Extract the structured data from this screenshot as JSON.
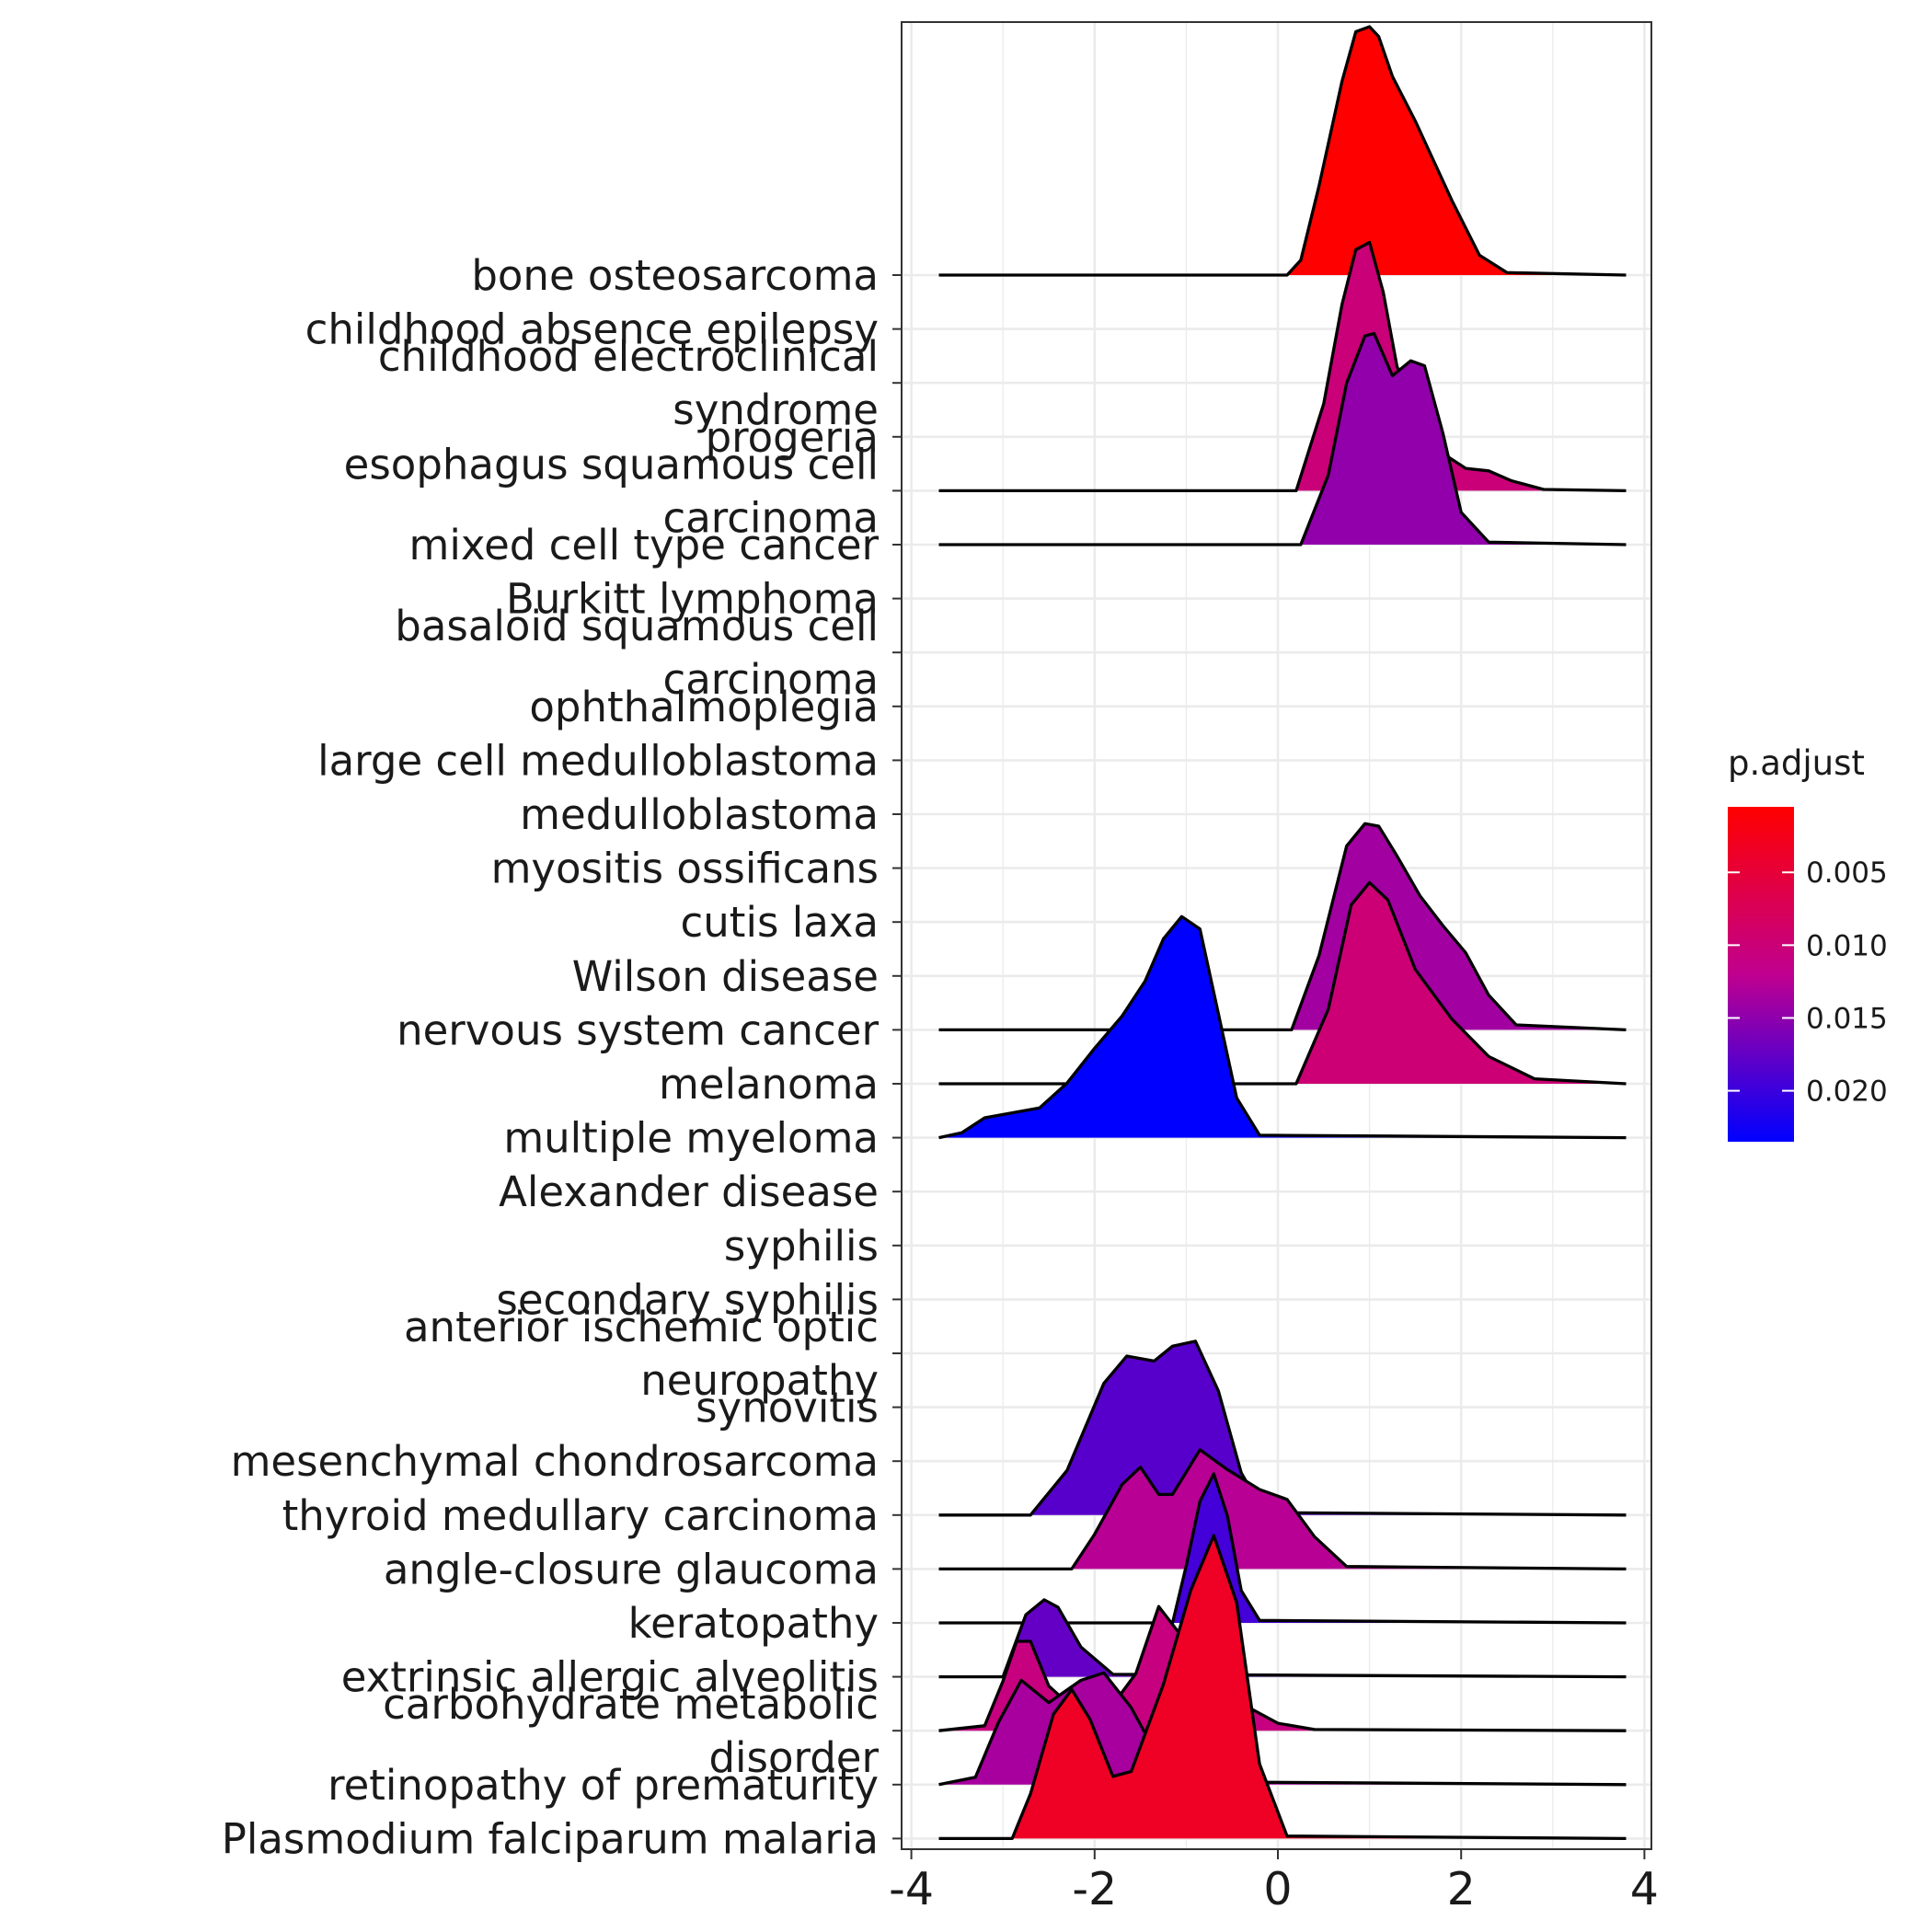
{
  "chart_data": {
    "type": "ridgeline",
    "title": "",
    "xlabel": "",
    "ylabel": "",
    "xlim": [
      -4,
      4
    ],
    "x_ticks": [
      "-4",
      "-2",
      "0",
      "2",
      "4"
    ],
    "grid": true,
    "legend": {
      "title": "p.adjust",
      "position": "right",
      "type": "colorbar",
      "min": 0.0005,
      "max": 0.0235,
      "low_color": "#ff0000",
      "high_color": "#0000ff",
      "ticks": [
        "0.005",
        "0.010",
        "0.015",
        "0.020"
      ]
    },
    "categories": [
      {
        "label": [
          "bone osteosarcoma"
        ],
        "p_adjust": 0.0005,
        "density": [
          [
            -3.7,
            0
          ],
          [
            0.1,
            0
          ],
          [
            0.25,
            0.06
          ],
          [
            0.45,
            0.36
          ],
          [
            0.7,
            0.78
          ],
          [
            0.85,
            0.98
          ],
          [
            1.0,
            1.0
          ],
          [
            1.1,
            0.96
          ],
          [
            1.25,
            0.8
          ],
          [
            1.5,
            0.62
          ],
          [
            1.9,
            0.3
          ],
          [
            2.2,
            0.08
          ],
          [
            2.5,
            0.01
          ],
          [
            3.8,
            0
          ]
        ]
      },
      {
        "label": [
          "childhood absence epilepsy"
        ],
        "p_adjust": null,
        "density": []
      },
      {
        "label": [
          "childhood electroclinical",
          "syndrome"
        ],
        "p_adjust": null,
        "density": []
      },
      {
        "label": [
          "progeria"
        ],
        "p_adjust": null,
        "density": []
      },
      {
        "label": [
          "esophagus squamous cell",
          "carcinoma"
        ],
        "p_adjust": 0.0102,
        "density": [
          [
            -3.7,
            0
          ],
          [
            0.2,
            0
          ],
          [
            0.5,
            0.35
          ],
          [
            0.7,
            0.75
          ],
          [
            0.85,
            0.97
          ],
          [
            1.0,
            1.0
          ],
          [
            1.15,
            0.8
          ],
          [
            1.3,
            0.5
          ],
          [
            1.55,
            0.29
          ],
          [
            1.8,
            0.15
          ],
          [
            2.05,
            0.09
          ],
          [
            2.3,
            0.08
          ],
          [
            2.55,
            0.04
          ],
          [
            2.9,
            0.005
          ],
          [
            3.8,
            0
          ]
        ]
      },
      {
        "label": [
          "mixed cell type cancer"
        ],
        "p_adjust": 0.0148,
        "density": [
          [
            -3.7,
            0
          ],
          [
            0.25,
            0
          ],
          [
            0.55,
            0.28
          ],
          [
            0.75,
            0.65
          ],
          [
            0.95,
            0.84
          ],
          [
            1.05,
            0.85
          ],
          [
            1.25,
            0.68
          ],
          [
            1.45,
            0.74
          ],
          [
            1.6,
            0.72
          ],
          [
            1.8,
            0.45
          ],
          [
            2.0,
            0.13
          ],
          [
            2.3,
            0.01
          ],
          [
            3.8,
            0
          ]
        ]
      },
      {
        "label": [
          "Burkitt lymphoma"
        ],
        "p_adjust": null,
        "density": []
      },
      {
        "label": [
          "basaloid squamous cell",
          "carcinoma"
        ],
        "p_adjust": null,
        "density": []
      },
      {
        "label": [
          "ophthalmoplegia"
        ],
        "p_adjust": null,
        "density": []
      },
      {
        "label": [
          "large cell medulloblastoma"
        ],
        "p_adjust": null,
        "density": []
      },
      {
        "label": [
          "medulloblastoma"
        ],
        "p_adjust": null,
        "density": []
      },
      {
        "label": [
          "myositis ossificans"
        ],
        "p_adjust": null,
        "density": []
      },
      {
        "label": [
          "cutis laxa"
        ],
        "p_adjust": null,
        "density": []
      },
      {
        "label": [
          "Wilson disease"
        ],
        "p_adjust": null,
        "density": []
      },
      {
        "label": [
          "nervous system cancer"
        ],
        "p_adjust": 0.0138,
        "density": [
          [
            -3.7,
            0
          ],
          [
            0.15,
            0
          ],
          [
            0.45,
            0.3
          ],
          [
            0.75,
            0.74
          ],
          [
            0.95,
            0.83
          ],
          [
            1.1,
            0.82
          ],
          [
            1.3,
            0.7
          ],
          [
            1.55,
            0.54
          ],
          [
            1.8,
            0.42
          ],
          [
            2.05,
            0.31
          ],
          [
            2.3,
            0.14
          ],
          [
            2.6,
            0.02
          ],
          [
            3.8,
            0
          ]
        ]
      },
      {
        "label": [
          "melanoma"
        ],
        "p_adjust": 0.0098,
        "density": [
          [
            -3.7,
            0
          ],
          [
            0.2,
            0
          ],
          [
            0.55,
            0.3
          ],
          [
            0.8,
            0.72
          ],
          [
            1.0,
            0.81
          ],
          [
            1.2,
            0.74
          ],
          [
            1.5,
            0.46
          ],
          [
            1.9,
            0.26
          ],
          [
            2.3,
            0.11
          ],
          [
            2.8,
            0.02
          ],
          [
            3.8,
            0
          ]
        ]
      },
      {
        "label": [
          "multiple myeloma"
        ],
        "p_adjust": 0.0235,
        "density": [
          [
            -3.7,
            0
          ],
          [
            -3.45,
            0.02
          ],
          [
            -3.2,
            0.08
          ],
          [
            -2.9,
            0.1
          ],
          [
            -2.6,
            0.12
          ],
          [
            -2.3,
            0.22
          ],
          [
            -2.0,
            0.36
          ],
          [
            -1.7,
            0.49
          ],
          [
            -1.45,
            0.63
          ],
          [
            -1.25,
            0.8
          ],
          [
            -1.05,
            0.89
          ],
          [
            -0.85,
            0.84
          ],
          [
            -0.65,
            0.5
          ],
          [
            -0.45,
            0.16
          ],
          [
            -0.2,
            0.01
          ],
          [
            3.8,
            0
          ]
        ]
      },
      {
        "label": [
          "Alexander disease"
        ],
        "p_adjust": null,
        "density": []
      },
      {
        "label": [
          "syphilis"
        ],
        "p_adjust": null,
        "density": []
      },
      {
        "label": [
          "secondary syphilis"
        ],
        "p_adjust": null,
        "density": []
      },
      {
        "label": [
          "anterior ischemic optic",
          "neuropathy"
        ],
        "p_adjust": null,
        "density": []
      },
      {
        "label": [
          "synovitis"
        ],
        "p_adjust": null,
        "density": []
      },
      {
        "label": [
          "mesenchymal chondrosarcoma"
        ],
        "p_adjust": null,
        "density": []
      },
      {
        "label": [
          "thyroid medullary carcinoma"
        ],
        "p_adjust": 0.0182,
        "density": [
          [
            -3.7,
            0
          ],
          [
            -2.7,
            0
          ],
          [
            -2.3,
            0.18
          ],
          [
            -1.9,
            0.53
          ],
          [
            -1.65,
            0.64
          ],
          [
            -1.35,
            0.62
          ],
          [
            -1.15,
            0.68
          ],
          [
            -0.9,
            0.7
          ],
          [
            -0.65,
            0.5
          ],
          [
            -0.4,
            0.17
          ],
          [
            -0.15,
            0.01
          ],
          [
            3.8,
            0
          ]
        ]
      },
      {
        "label": [
          "angle-closure glaucoma"
        ],
        "p_adjust": 0.0125,
        "density": [
          [
            -3.7,
            0
          ],
          [
            -2.25,
            0
          ],
          [
            -2.0,
            0.14
          ],
          [
            -1.7,
            0.34
          ],
          [
            -1.5,
            0.41
          ],
          [
            -1.3,
            0.3
          ],
          [
            -1.15,
            0.3
          ],
          [
            -0.85,
            0.48
          ],
          [
            -0.55,
            0.4
          ],
          [
            -0.2,
            0.32
          ],
          [
            0.1,
            0.28
          ],
          [
            0.4,
            0.13
          ],
          [
            0.75,
            0.01
          ],
          [
            3.8,
            0
          ]
        ]
      },
      {
        "label": [
          "keratopathy"
        ],
        "p_adjust": 0.0195,
        "density": [
          [
            -3.7,
            0
          ],
          [
            -1.15,
            0
          ],
          [
            -1.0,
            0.23
          ],
          [
            -0.85,
            0.49
          ],
          [
            -0.7,
            0.6
          ],
          [
            -0.55,
            0.43
          ],
          [
            -0.4,
            0.13
          ],
          [
            -0.2,
            0.01
          ],
          [
            3.8,
            0
          ]
        ]
      },
      {
        "label": [
          "extrinsic allergic alveolitis"
        ],
        "p_adjust": 0.0175,
        "density": [
          [
            -3.7,
            0
          ],
          [
            -3.0,
            0
          ],
          [
            -2.75,
            0.25
          ],
          [
            -2.55,
            0.31
          ],
          [
            -2.4,
            0.28
          ],
          [
            -2.15,
            0.12
          ],
          [
            -1.8,
            0.01
          ],
          [
            3.8,
            0
          ]
        ]
      },
      {
        "label": [
          "carbohydrate metabolic",
          "disorder"
        ],
        "p_adjust": 0.0108,
        "density": [
          [
            -3.7,
            0
          ],
          [
            -3.2,
            0.02
          ],
          [
            -3.0,
            0.2
          ],
          [
            -2.85,
            0.36
          ],
          [
            -2.7,
            0.36
          ],
          [
            -2.5,
            0.18
          ],
          [
            -2.2,
            0.08
          ],
          [
            -1.85,
            0.08
          ],
          [
            -1.55,
            0.23
          ],
          [
            -1.3,
            0.5
          ],
          [
            -1.05,
            0.38
          ],
          [
            -0.8,
            0.13
          ],
          [
            -0.55,
            0.03
          ],
          [
            -0.3,
            0.09
          ],
          [
            0.0,
            0.03
          ],
          [
            0.4,
            0.005
          ],
          [
            3.8,
            0
          ]
        ]
      },
      {
        "label": [
          "retinopathy of prematurity"
        ],
        "p_adjust": 0.0135,
        "density": [
          [
            -3.7,
            0
          ],
          [
            -3.3,
            0.03
          ],
          [
            -3.05,
            0.25
          ],
          [
            -2.8,
            0.42
          ],
          [
            -2.5,
            0.33
          ],
          [
            -2.15,
            0.42
          ],
          [
            -1.9,
            0.45
          ],
          [
            -1.6,
            0.31
          ],
          [
            -1.35,
            0.14
          ],
          [
            -1.05,
            0.08
          ],
          [
            -0.9,
            0.05
          ],
          [
            -0.75,
            0.06
          ],
          [
            -0.55,
            0.04
          ],
          [
            -0.3,
            0.01
          ],
          [
            3.8,
            0
          ]
        ]
      },
      {
        "label": [
          "Plasmodium falciparum malaria"
        ],
        "p_adjust": 0.0035,
        "density": [
          [
            -3.7,
            0
          ],
          [
            -2.9,
            0
          ],
          [
            -2.7,
            0.18
          ],
          [
            -2.45,
            0.5
          ],
          [
            -2.25,
            0.6
          ],
          [
            -2.05,
            0.48
          ],
          [
            -1.8,
            0.25
          ],
          [
            -1.6,
            0.27
          ],
          [
            -1.25,
            0.62
          ],
          [
            -0.95,
            1.0
          ],
          [
            -0.7,
            1.22
          ],
          [
            -0.45,
            0.95
          ],
          [
            -0.2,
            0.3
          ],
          [
            0.1,
            0.01
          ],
          [
            3.8,
            0
          ]
        ]
      }
    ]
  }
}
